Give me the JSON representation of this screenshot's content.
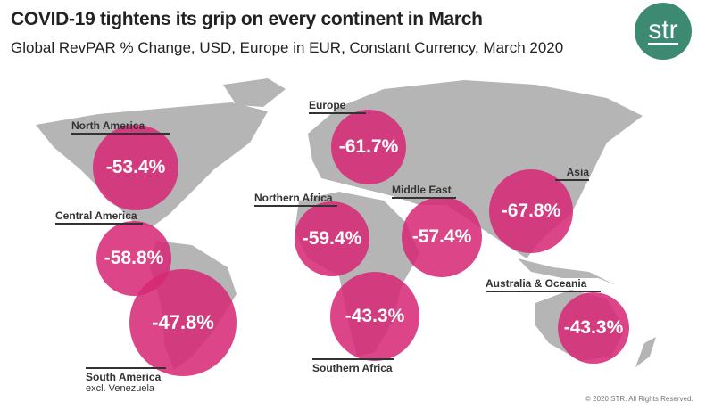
{
  "title": "COVID-19 tightens its grip on every continent in March",
  "subtitle": "Global RevPAR % Change, USD, Europe in EUR, Constant Currency, March 2020",
  "logo": "str",
  "colors": {
    "bubble": "#d62876",
    "map": "#b5b5b5",
    "logo": "#3d8a73"
  },
  "regions": [
    {
      "name": "North America",
      "value": "-53.4%"
    },
    {
      "name": "Central America",
      "value": "-58.8%"
    },
    {
      "name": "South America",
      "note": "excl. Venezuela",
      "value": "-47.8%"
    },
    {
      "name": "Europe",
      "value": "-61.7%"
    },
    {
      "name": "Northern Africa",
      "value": "-59.4%"
    },
    {
      "name": "Southern Africa",
      "value": "-43.3%"
    },
    {
      "name": "Middle East",
      "value": "-57.4%"
    },
    {
      "name": "Asia",
      "value": "-67.8%"
    },
    {
      "name": "Australia & Oceania",
      "value": "-43.3%"
    }
  ],
  "copyright": "© 2020 STR. All Rights Reserved."
}
